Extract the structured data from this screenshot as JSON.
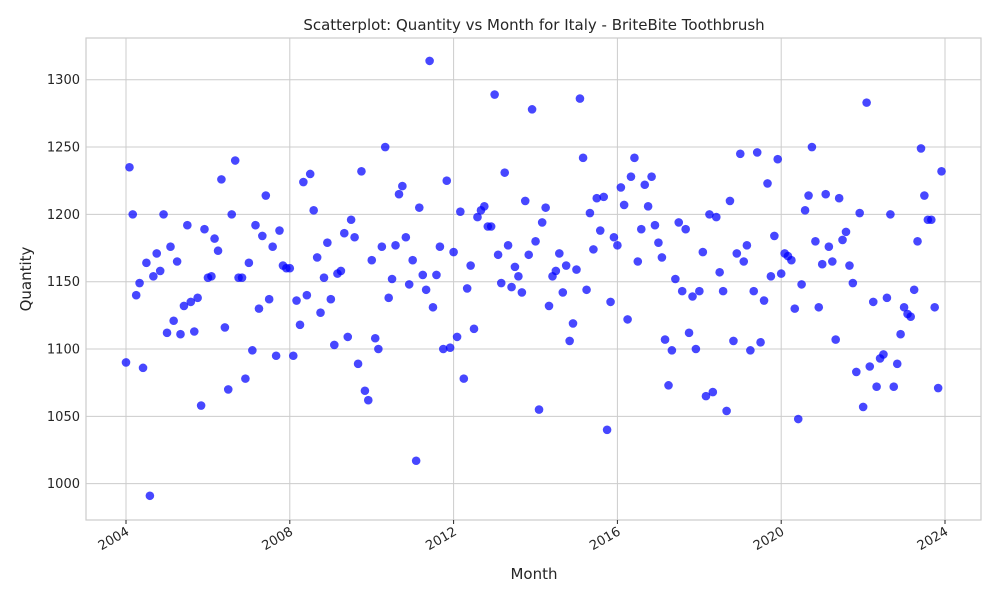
{
  "chart_data": {
    "type": "scatter",
    "title": "Scatterplot: Quantity vs Month for Italy - BriteBite Toothbrush",
    "xlabel": "Month",
    "ylabel": "Quantity",
    "xlim": [
      "2003-01-01",
      "2024-12-31"
    ],
    "ylim": [
      973,
      1331
    ],
    "x_ticks": [
      "2004",
      "2008",
      "2012",
      "2016",
      "2020",
      "2024"
    ],
    "y_ticks": [
      1000,
      1050,
      1100,
      1150,
      1200,
      1250,
      1300
    ],
    "grid": true,
    "marker_color": "#0000ff",
    "series": [
      {
        "name": "",
        "points": [
          [
            "2004-01-01",
            1090
          ],
          [
            "2004-02-01",
            1235
          ],
          [
            "2004-03-01",
            1200
          ],
          [
            "2004-04-01",
            1140
          ],
          [
            "2004-05-01",
            1149
          ],
          [
            "2004-06-01",
            1086
          ],
          [
            "2004-07-01",
            1164
          ],
          [
            "2004-08-01",
            991
          ],
          [
            "2004-09-01",
            1154
          ],
          [
            "2004-10-01",
            1171
          ],
          [
            "2004-11-01",
            1158
          ],
          [
            "2004-12-01",
            1200
          ],
          [
            "2005-01-01",
            1112
          ],
          [
            "2005-02-01",
            1176
          ],
          [
            "2005-03-01",
            1121
          ],
          [
            "2005-04-01",
            1165
          ],
          [
            "2005-05-01",
            1111
          ],
          [
            "2005-06-01",
            1132
          ],
          [
            "2005-07-01",
            1192
          ],
          [
            "2005-08-01",
            1135
          ],
          [
            "2005-09-01",
            1113
          ],
          [
            "2005-10-01",
            1138
          ],
          [
            "2005-11-01",
            1058
          ],
          [
            "2005-12-01",
            1189
          ],
          [
            "2006-01-01",
            1153
          ],
          [
            "2006-02-01",
            1154
          ],
          [
            "2006-03-01",
            1182
          ],
          [
            "2006-04-01",
            1173
          ],
          [
            "2006-05-01",
            1226
          ],
          [
            "2006-06-01",
            1116
          ],
          [
            "2006-07-01",
            1070
          ],
          [
            "2006-08-01",
            1200
          ],
          [
            "2006-09-01",
            1240
          ],
          [
            "2006-10-01",
            1153
          ],
          [
            "2006-11-01",
            1153
          ],
          [
            "2006-12-01",
            1078
          ],
          [
            "2007-01-01",
            1164
          ],
          [
            "2007-02-01",
            1099
          ],
          [
            "2007-03-01",
            1192
          ],
          [
            "2007-04-01",
            1130
          ],
          [
            "2007-05-01",
            1184
          ],
          [
            "2007-06-01",
            1214
          ],
          [
            "2007-07-01",
            1137
          ],
          [
            "2007-08-01",
            1176
          ],
          [
            "2007-09-01",
            1095
          ],
          [
            "2007-10-01",
            1188
          ],
          [
            "2007-11-01",
            1162
          ],
          [
            "2007-12-01",
            1160
          ],
          [
            "2008-01-01",
            1160
          ],
          [
            "2008-02-01",
            1095
          ],
          [
            "2008-03-01",
            1136
          ],
          [
            "2008-04-01",
            1118
          ],
          [
            "2008-05-01",
            1224
          ],
          [
            "2008-06-01",
            1140
          ],
          [
            "2008-07-01",
            1230
          ],
          [
            "2008-08-01",
            1203
          ],
          [
            "2008-09-01",
            1168
          ],
          [
            "2008-10-01",
            1127
          ],
          [
            "2008-11-01",
            1153
          ],
          [
            "2008-12-01",
            1179
          ],
          [
            "2009-01-01",
            1137
          ],
          [
            "2009-02-01",
            1103
          ],
          [
            "2009-03-01",
            1156
          ],
          [
            "2009-04-01",
            1158
          ],
          [
            "2009-05-01",
            1186
          ],
          [
            "2009-06-01",
            1109
          ],
          [
            "2009-07-01",
            1196
          ],
          [
            "2009-08-01",
            1183
          ],
          [
            "2009-09-01",
            1089
          ],
          [
            "2009-10-01",
            1232
          ],
          [
            "2009-11-01",
            1069
          ],
          [
            "2009-12-01",
            1062
          ],
          [
            "2010-01-01",
            1166
          ],
          [
            "2010-02-01",
            1108
          ],
          [
            "2010-03-01",
            1100
          ],
          [
            "2010-04-01",
            1176
          ],
          [
            "2010-05-01",
            1250
          ],
          [
            "2010-06-01",
            1138
          ],
          [
            "2010-07-01",
            1152
          ],
          [
            "2010-08-01",
            1177
          ],
          [
            "2010-09-01",
            1215
          ],
          [
            "2010-10-01",
            1221
          ],
          [
            "2010-11-01",
            1183
          ],
          [
            "2010-12-01",
            1148
          ],
          [
            "2011-01-01",
            1166
          ],
          [
            "2011-02-01",
            1017
          ],
          [
            "2011-03-01",
            1205
          ],
          [
            "2011-04-01",
            1155
          ],
          [
            "2011-05-01",
            1144
          ],
          [
            "2011-06-01",
            1314
          ],
          [
            "2011-07-01",
            1131
          ],
          [
            "2011-08-01",
            1155
          ],
          [
            "2011-09-01",
            1176
          ],
          [
            "2011-10-01",
            1100
          ],
          [
            "2011-11-01",
            1225
          ],
          [
            "2011-12-01",
            1101
          ],
          [
            "2012-01-01",
            1172
          ],
          [
            "2012-02-01",
            1109
          ],
          [
            "2012-03-01",
            1202
          ],
          [
            "2012-04-01",
            1078
          ],
          [
            "2012-05-01",
            1145
          ],
          [
            "2012-06-01",
            1162
          ],
          [
            "2012-07-01",
            1115
          ],
          [
            "2012-08-01",
            1198
          ],
          [
            "2012-09-01",
            1203
          ],
          [
            "2012-10-01",
            1206
          ],
          [
            "2012-11-01",
            1191
          ],
          [
            "2012-12-01",
            1191
          ],
          [
            "2013-01-01",
            1289
          ],
          [
            "2013-02-01",
            1170
          ],
          [
            "2013-03-01",
            1149
          ],
          [
            "2013-04-01",
            1231
          ],
          [
            "2013-05-01",
            1177
          ],
          [
            "2013-06-01",
            1146
          ],
          [
            "2013-07-01",
            1161
          ],
          [
            "2013-08-01",
            1154
          ],
          [
            "2013-09-01",
            1142
          ],
          [
            "2013-10-01",
            1210
          ],
          [
            "2013-11-01",
            1170
          ],
          [
            "2013-12-01",
            1278
          ],
          [
            "2014-01-01",
            1180
          ],
          [
            "2014-02-01",
            1055
          ],
          [
            "2014-03-01",
            1194
          ],
          [
            "2014-04-01",
            1205
          ],
          [
            "2014-05-01",
            1132
          ],
          [
            "2014-06-01",
            1154
          ],
          [
            "2014-07-01",
            1158
          ],
          [
            "2014-08-01",
            1171
          ],
          [
            "2014-09-01",
            1142
          ],
          [
            "2014-10-01",
            1162
          ],
          [
            "2014-11-01",
            1106
          ],
          [
            "2014-12-01",
            1119
          ],
          [
            "2015-01-01",
            1159
          ],
          [
            "2015-02-01",
            1286
          ],
          [
            "2015-03-01",
            1242
          ],
          [
            "2015-04-01",
            1144
          ],
          [
            "2015-05-01",
            1201
          ],
          [
            "2015-06-01",
            1174
          ],
          [
            "2015-07-01",
            1212
          ],
          [
            "2015-08-01",
            1188
          ],
          [
            "2015-09-01",
            1213
          ],
          [
            "2015-10-01",
            1040
          ],
          [
            "2015-11-01",
            1135
          ],
          [
            "2015-12-01",
            1183
          ],
          [
            "2016-01-01",
            1177
          ],
          [
            "2016-02-01",
            1220
          ],
          [
            "2016-03-01",
            1207
          ],
          [
            "2016-04-01",
            1122
          ],
          [
            "2016-05-01",
            1228
          ],
          [
            "2016-06-01",
            1242
          ],
          [
            "2016-07-01",
            1165
          ],
          [
            "2016-08-01",
            1189
          ],
          [
            "2016-09-01",
            1222
          ],
          [
            "2016-10-01",
            1206
          ],
          [
            "2016-11-01",
            1228
          ],
          [
            "2016-12-01",
            1192
          ],
          [
            "2017-01-01",
            1179
          ],
          [
            "2017-02-01",
            1168
          ],
          [
            "2017-03-01",
            1107
          ],
          [
            "2017-04-01",
            1073
          ],
          [
            "2017-05-01",
            1099
          ],
          [
            "2017-06-01",
            1152
          ],
          [
            "2017-07-01",
            1194
          ],
          [
            "2017-08-01",
            1143
          ],
          [
            "2017-09-01",
            1189
          ],
          [
            "2017-10-01",
            1112
          ],
          [
            "2017-11-01",
            1139
          ],
          [
            "2017-12-01",
            1100
          ],
          [
            "2018-01-01",
            1143
          ],
          [
            "2018-02-01",
            1172
          ],
          [
            "2018-03-01",
            1065
          ],
          [
            "2018-04-01",
            1200
          ],
          [
            "2018-05-01",
            1068
          ],
          [
            "2018-06-01",
            1198
          ],
          [
            "2018-07-01",
            1157
          ],
          [
            "2018-08-01",
            1143
          ],
          [
            "2018-09-01",
            1054
          ],
          [
            "2018-10-01",
            1210
          ],
          [
            "2018-11-01",
            1106
          ],
          [
            "2018-12-01",
            1171
          ],
          [
            "2019-01-01",
            1245
          ],
          [
            "2019-02-01",
            1165
          ],
          [
            "2019-03-01",
            1177
          ],
          [
            "2019-04-01",
            1099
          ],
          [
            "2019-05-01",
            1143
          ],
          [
            "2019-06-01",
            1246
          ],
          [
            "2019-07-01",
            1105
          ],
          [
            "2019-08-01",
            1136
          ],
          [
            "2019-09-01",
            1223
          ],
          [
            "2019-10-01",
            1154
          ],
          [
            "2019-11-01",
            1184
          ],
          [
            "2019-12-01",
            1241
          ],
          [
            "2020-01-01",
            1156
          ],
          [
            "2020-02-01",
            1171
          ],
          [
            "2020-03-01",
            1169
          ],
          [
            "2020-04-01",
            1166
          ],
          [
            "2020-05-01",
            1130
          ],
          [
            "2020-06-01",
            1048
          ],
          [
            "2020-07-01",
            1148
          ],
          [
            "2020-08-01",
            1203
          ],
          [
            "2020-09-01",
            1214
          ],
          [
            "2020-10-01",
            1250
          ],
          [
            "2020-11-01",
            1180
          ],
          [
            "2020-12-01",
            1131
          ],
          [
            "2021-01-01",
            1163
          ],
          [
            "2021-02-01",
            1215
          ],
          [
            "2021-03-01",
            1176
          ],
          [
            "2021-04-01",
            1165
          ],
          [
            "2021-05-01",
            1107
          ],
          [
            "2021-06-01",
            1212
          ],
          [
            "2021-07-01",
            1181
          ],
          [
            "2021-08-01",
            1187
          ],
          [
            "2021-09-01",
            1162
          ],
          [
            "2021-10-01",
            1149
          ],
          [
            "2021-11-01",
            1083
          ],
          [
            "2021-12-01",
            1201
          ],
          [
            "2022-01-01",
            1057
          ],
          [
            "2022-02-01",
            1283
          ],
          [
            "2022-03-01",
            1087
          ],
          [
            "2022-04-01",
            1135
          ],
          [
            "2022-05-01",
            1072
          ],
          [
            "2022-06-01",
            1093
          ],
          [
            "2022-07-01",
            1096
          ],
          [
            "2022-08-01",
            1138
          ],
          [
            "2022-09-01",
            1200
          ],
          [
            "2022-10-01",
            1072
          ],
          [
            "2022-11-01",
            1089
          ],
          [
            "2022-12-01",
            1111
          ],
          [
            "2023-01-01",
            1131
          ],
          [
            "2023-02-01",
            1126
          ],
          [
            "2023-03-01",
            1124
          ],
          [
            "2023-04-01",
            1144
          ],
          [
            "2023-05-01",
            1180
          ],
          [
            "2023-06-01",
            1249
          ],
          [
            "2023-07-01",
            1214
          ],
          [
            "2023-08-01",
            1196
          ],
          [
            "2023-09-01",
            1196
          ],
          [
            "2023-10-01",
            1131
          ],
          [
            "2023-11-01",
            1071
          ],
          [
            "2023-12-01",
            1232
          ]
        ]
      }
    ]
  }
}
